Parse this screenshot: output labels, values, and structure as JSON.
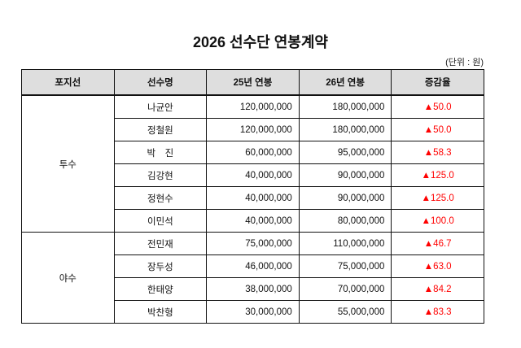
{
  "title": "2026 선수단 연봉계약",
  "unit": "(단위 : 원)",
  "columns": [
    "포지선",
    "선수명",
    "25년 연봉",
    "26년 연봉",
    "증감율"
  ],
  "accent_color": "#ff0000",
  "groups": [
    {
      "position": "투수",
      "rows": [
        {
          "name": "나균안",
          "y25": "120,000,000",
          "y26": "180,000,000",
          "rate": "▲50.0"
        },
        {
          "name": "정철원",
          "y25": "120,000,000",
          "y26": "180,000,000",
          "rate": "▲50.0"
        },
        {
          "name": "박　진",
          "y25": "60,000,000",
          "y26": "95,000,000",
          "rate": "▲58.3"
        },
        {
          "name": "김강현",
          "y25": "40,000,000",
          "y26": "90,000,000",
          "rate": "▲125.0"
        },
        {
          "name": "정현수",
          "y25": "40,000,000",
          "y26": "90,000,000",
          "rate": "▲125.0"
        },
        {
          "name": "이민석",
          "y25": "40,000,000",
          "y26": "80,000,000",
          "rate": "▲100.0"
        }
      ]
    },
    {
      "position": "야수",
      "rows": [
        {
          "name": "전민재",
          "y25": "75,000,000",
          "y26": "110,000,000",
          "rate": "▲46.7"
        },
        {
          "name": "장두성",
          "y25": "46,000,000",
          "y26": "75,000,000",
          "rate": "▲63.0"
        },
        {
          "name": "한태양",
          "y25": "38,000,000",
          "y26": "70,000,000",
          "rate": "▲84.2"
        },
        {
          "name": "박찬형",
          "y25": "30,000,000",
          "y26": "55,000,000",
          "rate": "▲83.3"
        }
      ]
    }
  ]
}
